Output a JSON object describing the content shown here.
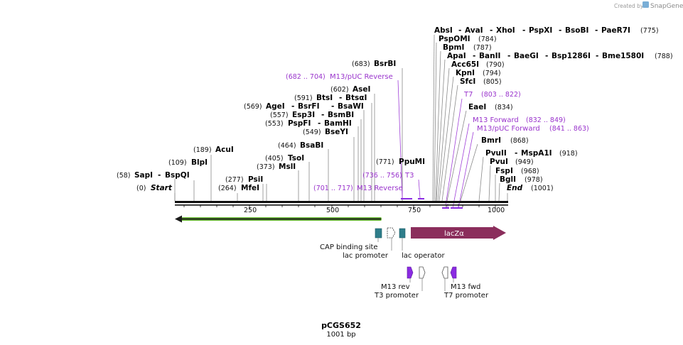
{
  "watermark": {
    "prefix": "Created by",
    "brand": "SnapGene"
  },
  "plasmid": {
    "name": "pCGS652",
    "length_label": "1001 bp"
  },
  "ruler": {
    "ticks": [
      "250",
      "500",
      "750",
      "1000"
    ]
  },
  "sites": {
    "start": {
      "pos": "(0)",
      "name": "Start"
    },
    "end": {
      "name": "End",
      "pos": "(1001)"
    },
    "sapi": {
      "pos": "(58)",
      "name": "SapI",
      "name2": "BspQI"
    },
    "blpi": {
      "pos": "(109)",
      "name": "BlpI"
    },
    "acui": {
      "pos": "(189)",
      "name": "AcuI"
    },
    "mfei": {
      "pos": "(264)",
      "name": "MfeI"
    },
    "psii": {
      "pos": "(277)",
      "name": "PsiI"
    },
    "msli": {
      "pos": "(373)",
      "name": "MslI"
    },
    "tsoi": {
      "pos": "(405)",
      "name": "TsoI"
    },
    "bsabi": {
      "pos": "(464)",
      "name": "BsaBI"
    },
    "bseyi": {
      "pos": "(549)",
      "name": "BseYI"
    },
    "pspfi": {
      "pos": "(553)",
      "name": "PspFI",
      "name2": "BamHI"
    },
    "esp3i": {
      "pos": "(557)",
      "name": "Esp3I",
      "name2": "BsmBI"
    },
    "agei": {
      "pos": "(569)",
      "name": "AgeI",
      "name2": "BsrFI",
      "name3": "BsaWI"
    },
    "btsi": {
      "pos": "(591)",
      "name": "BtsI",
      "name2": "BtsαI"
    },
    "asei": {
      "pos": "(602)",
      "name": "AseI"
    },
    "bsrbi": {
      "pos": "(683)",
      "name": "BsrBI"
    },
    "ppumi": {
      "pos": "(771)",
      "name": "PpuMI"
    },
    "absi": {
      "name": "AbsI",
      "name2": "AvaI",
      "name3": "XhoI",
      "name4": "PspXI",
      "name5": "BsoBI",
      "name6": "PaeR7I",
      "pos": "(775)"
    },
    "pspomi": {
      "name": "PspOMI",
      "pos": "(784)"
    },
    "bpmi": {
      "name": "BpmI",
      "pos": "(787)"
    },
    "apai": {
      "name": "ApaI",
      "name2": "BanII",
      "name3": "BaeGI",
      "name4": "Bsp1286I",
      "name5": "Bme1580I",
      "pos": "(788)"
    },
    "acc65i": {
      "name": "Acc65I",
      "pos": "(790)"
    },
    "kpni": {
      "name": "KpnI",
      "pos": "(794)"
    },
    "sfci": {
      "name": "SfcI",
      "pos": "(805)"
    },
    "eaei": {
      "name": "EaeI",
      "pos": "(834)"
    },
    "bmri": {
      "name": "BmrI",
      "pos": "(868)"
    },
    "pvuii": {
      "name": "PvuII",
      "name2": "MspA1I",
      "pos": "(918)"
    },
    "pvui": {
      "name": "PvuI",
      "pos": "(949)"
    },
    "fspi": {
      "name": "FspI",
      "pos": "(968)"
    },
    "bgli": {
      "name": "BglI",
      "pos": "(978)"
    }
  },
  "primers": {
    "m13puc_rev": {
      "range": "(682 .. 704)",
      "name": "M13/pUC Reverse"
    },
    "m13_rev": {
      "range": "(701 .. 717)",
      "name": "M13 Reverse"
    },
    "t3": {
      "range": "(736 .. 756)",
      "name": "T3"
    },
    "t7": {
      "name": "T7",
      "range": "(803 .. 822)"
    },
    "m13_fwd": {
      "name": "M13 Forward",
      "range": "(832 .. 849)"
    },
    "m13puc_fwd": {
      "name": "M13/pUC Forward",
      "range": "(841 .. 863)"
    }
  },
  "features": {
    "lacz": "lacZα",
    "cap": "CAP binding site",
    "lacp": "lac promoter",
    "laco": "lac operator",
    "m13rev": "M13 rev",
    "t3p": "T3 promoter",
    "m13fwd": "M13 fwd",
    "t7p": "T7 promoter"
  },
  "colors": {
    "primer": "#9933cc",
    "lacz": "#8b2e5c",
    "cap": "#2e7d8a",
    "orf_arrow": "#6fbf3a",
    "primer_bind": "#8a2be2"
  }
}
